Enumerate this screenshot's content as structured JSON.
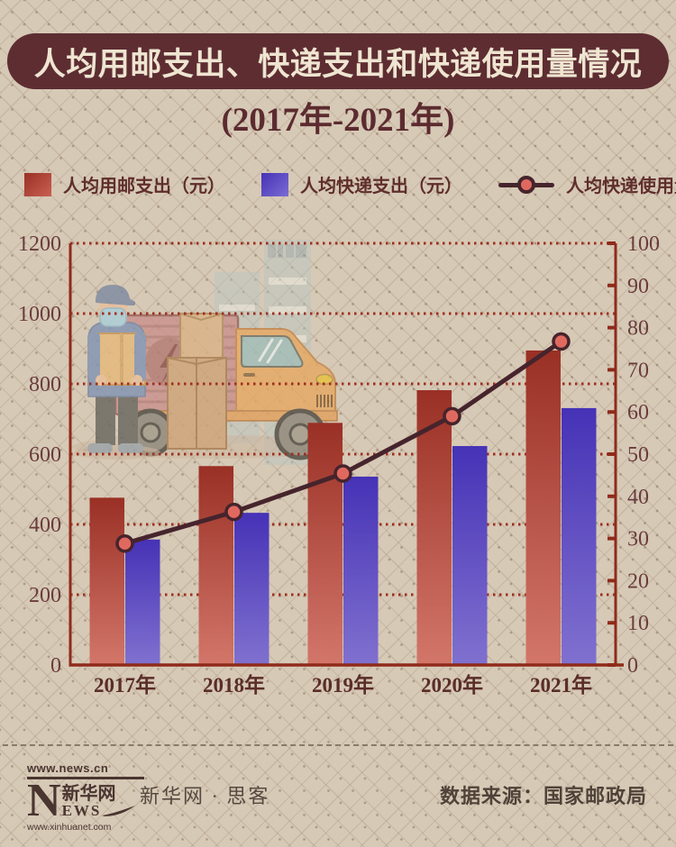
{
  "title": "人均用邮支出、快递支出和快递使用量情况",
  "subtitle": "(2017年-2021年)",
  "legend": {
    "items": [
      {
        "label": "人均用邮支出（元）",
        "type": "bar",
        "swatch": "red-gradient"
      },
      {
        "label": "人均快递支出（元）",
        "type": "bar",
        "swatch": "blue-gradient"
      },
      {
        "label": "人均快递使用量（件）",
        "type": "line",
        "swatch": "line-with-marker"
      }
    ]
  },
  "chart_data": {
    "type": "bar",
    "categories": [
      "2017年",
      "2018年",
      "2019年",
      "2020年",
      "2021年"
    ],
    "series": [
      {
        "name": "人均用邮支出（元）",
        "type": "bar",
        "axis": "left",
        "values": [
          476,
          566,
          689,
          782,
          895
        ]
      },
      {
        "name": "人均快递支出（元）",
        "type": "bar",
        "axis": "left",
        "values": [
          357,
          433,
          536,
          623,
          731
        ]
      },
      {
        "name": "人均快递使用量（件）",
        "type": "line",
        "axis": "right",
        "values": [
          28.8,
          36.3,
          45.4,
          59,
          76.7
        ]
      }
    ],
    "left_axis": {
      "min": 0,
      "max": 1200,
      "step": 200,
      "ticks": [
        "0",
        "200",
        "400",
        "600",
        "800",
        "1000",
        "1200"
      ]
    },
    "right_axis": {
      "min": 0,
      "max": 100,
      "step": 10,
      "ticks": [
        "0",
        "10",
        "20",
        "30",
        "40",
        "50",
        "60",
        "70",
        "80",
        "90",
        "100"
      ]
    },
    "grid": "horizontal-dotted",
    "legend_position": "top",
    "background_illustration": "delivery worker with parcel, cardboard boxes and delivery truck"
  },
  "footer": {
    "logo": {
      "top_url": "www.news.cn",
      "letter_n": "N",
      "cn_name": "新华网",
      "letters_ews": "EWS",
      "bottom_url": "www.xinhuanet.com"
    },
    "brand": "新华网 · 思客",
    "source": "数据来源：国家邮政局"
  },
  "colors": {
    "background": "#d6c9b6",
    "title_pill_bg": "#5d2d32",
    "title_text": "#efe5d1",
    "heading_text": "#5c2b2f",
    "axis_line": "#8f2b1b",
    "grid_dot": "#9e2f1f",
    "tick_label": "#6a3c3c",
    "x_label": "#5a2d28",
    "bar_red_top": "#9a3025",
    "bar_red_bottom": "#d3766a",
    "bar_blue_top": "#4632b6",
    "bar_blue_bottom": "#8071cf",
    "line": "#46242c",
    "marker": "#e0695f",
    "footer_text": "#564a40",
    "logo": "#4a3530"
  }
}
